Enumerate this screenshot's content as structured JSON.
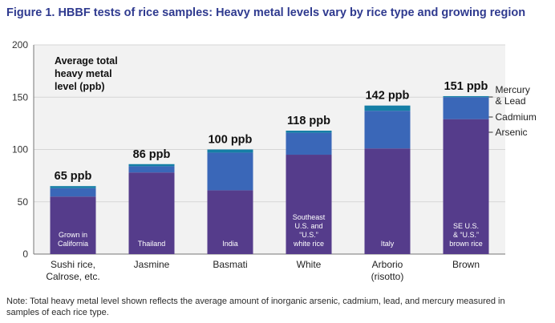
{
  "title": "Figure 1. HBBF tests of rice samples: Heavy metal levels vary by rice type and growing region",
  "note": "Note: Total heavy metal level shown reflects the average amount of inorganic arsenic, cadmium, lead, and mercury measured in samples of each rice type.",
  "chart_data": {
    "type": "bar",
    "stacked": true,
    "ytitle": [
      "Average total",
      "heavy metal",
      "level (ppb)"
    ],
    "ylim": [
      0,
      200
    ],
    "yticks": [
      0,
      50,
      100,
      150,
      200
    ],
    "categories": [
      [
        "Sushi rice,",
        "Calrose, etc."
      ],
      [
        "Jasmine"
      ],
      [
        "Basmati"
      ],
      [
        "White"
      ],
      [
        "Arborio",
        "(risotto)"
      ],
      [
        "Brown"
      ]
    ],
    "regions": [
      [
        "Grown in",
        "California"
      ],
      [
        "Thailand"
      ],
      [
        "India"
      ],
      [
        "Southeast",
        "U.S. and",
        "“U.S.”",
        "white rice"
      ],
      [
        "Italy"
      ],
      [
        "SE U.S.",
        "& “U.S.”",
        "brown rice"
      ]
    ],
    "totals_labels": [
      "65 ppb",
      "86 ppb",
      "100 ppb",
      "118 ppb",
      "142 ppb",
      "151 ppb"
    ],
    "series": [
      {
        "name": "Arsenic",
        "color": "#553c8b",
        "values": [
          55,
          78,
          61,
          95,
          101,
          129
        ]
      },
      {
        "name": "Cadmium",
        "color": "#3a67b8",
        "values": [
          8,
          6,
          36,
          21,
          36,
          21
        ]
      },
      {
        "name": "Mercury & Lead",
        "color": "#157fa6",
        "values": [
          2,
          2,
          3,
          2,
          5,
          1
        ]
      }
    ],
    "legend": [
      {
        "lines": [
          "Mercury",
          "& Lead"
        ]
      },
      {
        "lines": [
          "Cadmium"
        ]
      },
      {
        "lines": [
          "Arsenic"
        ]
      }
    ]
  }
}
